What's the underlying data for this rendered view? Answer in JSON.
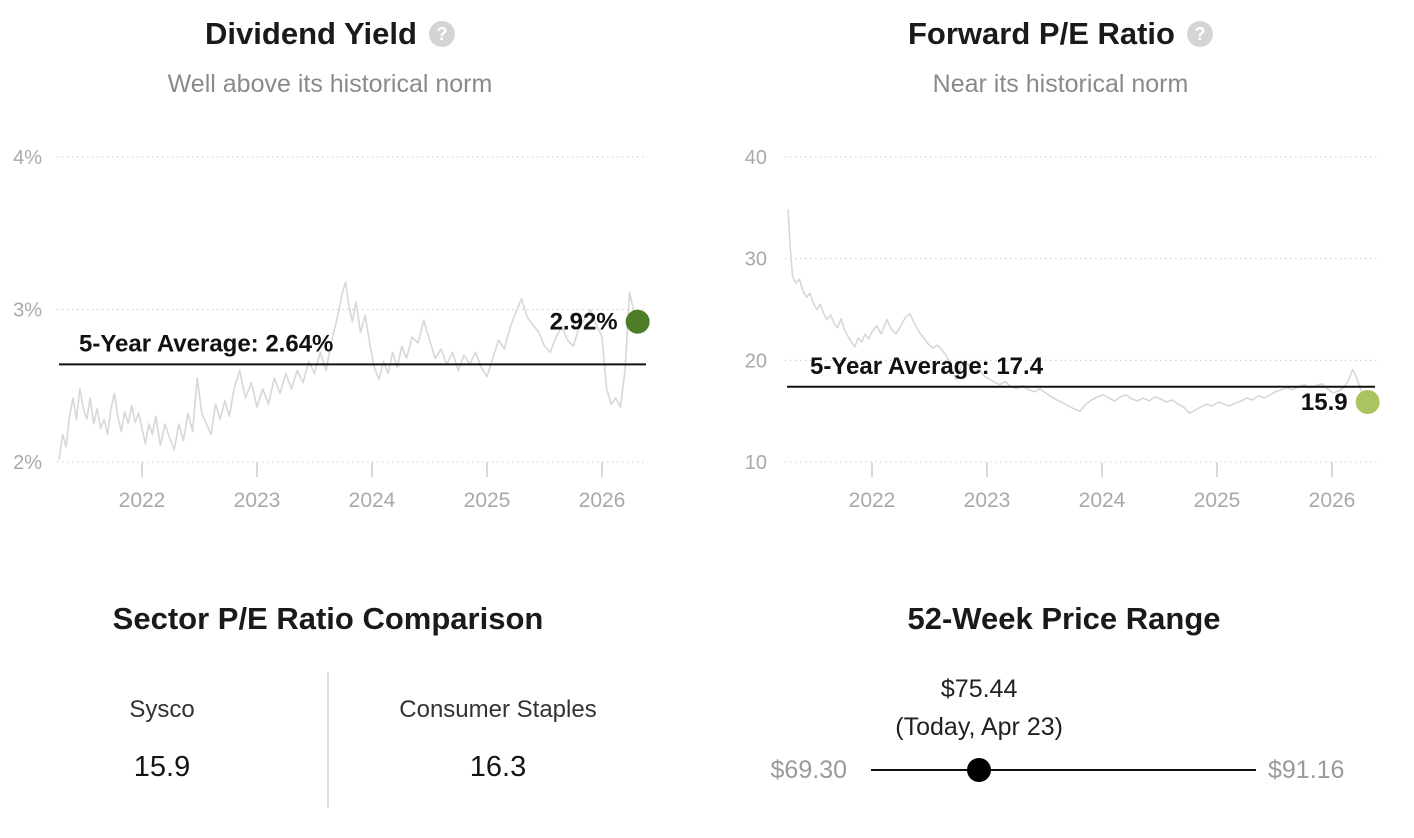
{
  "icons": {
    "help_glyph": "?"
  },
  "colors": {
    "title": "#1a1a1a",
    "subtitle": "#8a8a8a",
    "axis_label": "#a9a9a9",
    "gridline": "#cccccc",
    "series_line": "#d7d7d7",
    "average_line": "#111111",
    "annotation_text": "#111111",
    "dividend_dot": "#4e7d28",
    "pe_dot": "#aac45f",
    "help_icon_bg": "#d4d4d4",
    "range_end_labels": "#9a9a9a",
    "divider": "#dddddd",
    "slider_line": "#111111",
    "slider_dot": "#000000"
  },
  "chart_data": [
    {
      "id": "dividend_yield",
      "type": "line",
      "title": "Dividend Yield",
      "subtitle": "Well above its historical norm",
      "legend": "none",
      "grid": "dotted horizontal",
      "ylim": [
        2,
        4
      ],
      "xlim": [
        2021.25,
        2026.45
      ],
      "y_ticks": [
        {
          "value": 4,
          "label": "4%"
        },
        {
          "value": 3,
          "label": "3%"
        },
        {
          "value": 2,
          "label": "2%"
        }
      ],
      "x_ticks": [
        {
          "value": 2022,
          "label": "2022"
        },
        {
          "value": 2023,
          "label": "2023"
        },
        {
          "value": 2024,
          "label": "2024"
        },
        {
          "value": 2025,
          "label": "2025"
        },
        {
          "value": 2026,
          "label": "2026"
        }
      ],
      "average_line": {
        "label": "5-Year Average: 2.64%",
        "value": 2.64
      },
      "current": {
        "label": "2.92%",
        "value": 2.92
      },
      "series_points": [
        [
          2021.28,
          2.02
        ],
        [
          2021.31,
          2.18
        ],
        [
          2021.34,
          2.1
        ],
        [
          2021.37,
          2.3
        ],
        [
          2021.4,
          2.42
        ],
        [
          2021.43,
          2.28
        ],
        [
          2021.46,
          2.48
        ],
        [
          2021.49,
          2.35
        ],
        [
          2021.52,
          2.28
        ],
        [
          2021.55,
          2.42
        ],
        [
          2021.58,
          2.25
        ],
        [
          2021.61,
          2.35
        ],
        [
          2021.64,
          2.22
        ],
        [
          2021.67,
          2.28
        ],
        [
          2021.7,
          2.18
        ],
        [
          2021.73,
          2.35
        ],
        [
          2021.76,
          2.45
        ],
        [
          2021.79,
          2.3
        ],
        [
          2021.82,
          2.2
        ],
        [
          2021.85,
          2.33
        ],
        [
          2021.88,
          2.25
        ],
        [
          2021.91,
          2.37
        ],
        [
          2021.94,
          2.26
        ],
        [
          2021.97,
          2.32
        ],
        [
          2022.0,
          2.22
        ],
        [
          2022.03,
          2.12
        ],
        [
          2022.06,
          2.25
        ],
        [
          2022.09,
          2.18
        ],
        [
          2022.12,
          2.3
        ],
        [
          2022.16,
          2.11
        ],
        [
          2022.2,
          2.25
        ],
        [
          2022.24,
          2.16
        ],
        [
          2022.28,
          2.08
        ],
        [
          2022.32,
          2.25
        ],
        [
          2022.36,
          2.14
        ],
        [
          2022.4,
          2.32
        ],
        [
          2022.44,
          2.2
        ],
        [
          2022.48,
          2.55
        ],
        [
          2022.52,
          2.32
        ],
        [
          2022.56,
          2.25
        ],
        [
          2022.6,
          2.18
        ],
        [
          2022.64,
          2.38
        ],
        [
          2022.68,
          2.28
        ],
        [
          2022.72,
          2.4
        ],
        [
          2022.76,
          2.3
        ],
        [
          2022.8,
          2.48
        ],
        [
          2022.85,
          2.6
        ],
        [
          2022.9,
          2.42
        ],
        [
          2022.95,
          2.52
        ],
        [
          2023.0,
          2.36
        ],
        [
          2023.05,
          2.48
        ],
        [
          2023.1,
          2.38
        ],
        [
          2023.15,
          2.55
        ],
        [
          2023.2,
          2.45
        ],
        [
          2023.25,
          2.58
        ],
        [
          2023.3,
          2.48
        ],
        [
          2023.35,
          2.6
        ],
        [
          2023.4,
          2.52
        ],
        [
          2023.45,
          2.66
        ],
        [
          2023.5,
          2.58
        ],
        [
          2023.55,
          2.72
        ],
        [
          2023.6,
          2.6
        ],
        [
          2023.65,
          2.8
        ],
        [
          2023.7,
          2.95
        ],
        [
          2023.74,
          3.1
        ],
        [
          2023.77,
          3.18
        ],
        [
          2023.8,
          3.02
        ],
        [
          2023.83,
          2.92
        ],
        [
          2023.86,
          3.05
        ],
        [
          2023.9,
          2.85
        ],
        [
          2023.94,
          2.96
        ],
        [
          2023.98,
          2.78
        ],
        [
          2024.02,
          2.62
        ],
        [
          2024.06,
          2.54
        ],
        [
          2024.1,
          2.66
        ],
        [
          2024.14,
          2.58
        ],
        [
          2024.18,
          2.72
        ],
        [
          2024.22,
          2.62
        ],
        [
          2024.26,
          2.76
        ],
        [
          2024.3,
          2.68
        ],
        [
          2024.35,
          2.82
        ],
        [
          2024.4,
          2.78
        ],
        [
          2024.45,
          2.93
        ],
        [
          2024.5,
          2.8
        ],
        [
          2024.55,
          2.68
        ],
        [
          2024.6,
          2.74
        ],
        [
          2024.65,
          2.64
        ],
        [
          2024.7,
          2.72
        ],
        [
          2024.75,
          2.6
        ],
        [
          2024.8,
          2.7
        ],
        [
          2024.85,
          2.64
        ],
        [
          2024.9,
          2.72
        ],
        [
          2024.95,
          2.62
        ],
        [
          2025.0,
          2.56
        ],
        [
          2025.05,
          2.68
        ],
        [
          2025.1,
          2.8
        ],
        [
          2025.15,
          2.74
        ],
        [
          2025.2,
          2.88
        ],
        [
          2025.25,
          2.98
        ],
        [
          2025.3,
          3.07
        ],
        [
          2025.35,
          2.95
        ],
        [
          2025.4,
          2.9
        ],
        [
          2025.45,
          2.85
        ],
        [
          2025.5,
          2.76
        ],
        [
          2025.55,
          2.72
        ],
        [
          2025.6,
          2.82
        ],
        [
          2025.65,
          2.89
        ],
        [
          2025.7,
          2.8
        ],
        [
          2025.75,
          2.76
        ],
        [
          2025.8,
          2.88
        ],
        [
          2025.85,
          2.94
        ],
        [
          2025.9,
          3.0
        ],
        [
          2025.95,
          2.9
        ],
        [
          2026.0,
          2.82
        ],
        [
          2026.04,
          2.48
        ],
        [
          2026.08,
          2.38
        ],
        [
          2026.12,
          2.42
        ],
        [
          2026.16,
          2.36
        ],
        [
          2026.2,
          2.6
        ],
        [
          2026.24,
          3.11
        ],
        [
          2026.28,
          2.98
        ],
        [
          2026.31,
          2.92
        ]
      ]
    },
    {
      "id": "forward_pe",
      "type": "line",
      "title": "Forward P/E Ratio",
      "subtitle": "Near its historical norm",
      "legend": "none",
      "grid": "dotted horizontal",
      "ylim": [
        10,
        40
      ],
      "xlim": [
        2021.25,
        2026.45
      ],
      "y_ticks": [
        {
          "value": 40,
          "label": "40"
        },
        {
          "value": 30,
          "label": "30"
        },
        {
          "value": 20,
          "label": "20"
        },
        {
          "value": 10,
          "label": "10"
        }
      ],
      "x_ticks": [
        {
          "value": 2022,
          "label": "2022"
        },
        {
          "value": 2023,
          "label": "2023"
        },
        {
          "value": 2024,
          "label": "2024"
        },
        {
          "value": 2025,
          "label": "2025"
        },
        {
          "value": 2026,
          "label": "2026"
        }
      ],
      "average_line": {
        "label": "5-Year Average: 17.4",
        "value": 17.4
      },
      "current": {
        "label": "15.9",
        "value": 15.9
      },
      "series_points": [
        [
          2021.27,
          34.8
        ],
        [
          2021.29,
          31.0
        ],
        [
          2021.31,
          28.2
        ],
        [
          2021.34,
          27.6
        ],
        [
          2021.37,
          28.0
        ],
        [
          2021.4,
          26.8
        ],
        [
          2021.43,
          26.2
        ],
        [
          2021.46,
          26.6
        ],
        [
          2021.49,
          25.6
        ],
        [
          2021.52,
          25.0
        ],
        [
          2021.55,
          25.5
        ],
        [
          2021.58,
          24.6
        ],
        [
          2021.61,
          24.0
        ],
        [
          2021.64,
          24.5
        ],
        [
          2021.67,
          23.6
        ],
        [
          2021.7,
          23.2
        ],
        [
          2021.73,
          24.1
        ],
        [
          2021.76,
          23.0
        ],
        [
          2021.79,
          22.4
        ],
        [
          2021.82,
          21.8
        ],
        [
          2021.85,
          21.3
        ],
        [
          2021.88,
          22.2
        ],
        [
          2021.91,
          21.8
        ],
        [
          2021.94,
          22.6
        ],
        [
          2021.97,
          22.1
        ],
        [
          2022.0,
          22.8
        ],
        [
          2022.04,
          23.4
        ],
        [
          2022.08,
          22.6
        ],
        [
          2022.13,
          24.0
        ],
        [
          2022.17,
          23.0
        ],
        [
          2022.21,
          22.6
        ],
        [
          2022.25,
          23.4
        ],
        [
          2022.29,
          24.2
        ],
        [
          2022.33,
          24.6
        ],
        [
          2022.37,
          23.6
        ],
        [
          2022.41,
          22.8
        ],
        [
          2022.45,
          22.2
        ],
        [
          2022.49,
          21.6
        ],
        [
          2022.53,
          21.2
        ],
        [
          2022.57,
          21.5
        ],
        [
          2022.61,
          21.0
        ],
        [
          2022.65,
          20.4
        ],
        [
          2022.69,
          19.3
        ],
        [
          2022.73,
          18.1
        ],
        [
          2022.77,
          19.2
        ],
        [
          2022.81,
          20.0
        ],
        [
          2022.85,
          19.4
        ],
        [
          2022.89,
          18.8
        ],
        [
          2022.93,
          19.2
        ],
        [
          2022.97,
          18.5
        ],
        [
          2023.01,
          18.2
        ],
        [
          2023.06,
          17.9
        ],
        [
          2023.11,
          17.6
        ],
        [
          2023.16,
          17.9
        ],
        [
          2023.21,
          17.4
        ],
        [
          2023.26,
          17.2
        ],
        [
          2023.31,
          17.5
        ],
        [
          2023.36,
          17.1
        ],
        [
          2023.41,
          16.9
        ],
        [
          2023.46,
          17.2
        ],
        [
          2023.51,
          16.8
        ],
        [
          2023.56,
          16.4
        ],
        [
          2023.61,
          16.1
        ],
        [
          2023.66,
          15.8
        ],
        [
          2023.71,
          15.5
        ],
        [
          2023.76,
          15.2
        ],
        [
          2023.81,
          15.0
        ],
        [
          2023.86,
          15.7
        ],
        [
          2023.91,
          16.1
        ],
        [
          2023.96,
          16.4
        ],
        [
          2024.01,
          16.6
        ],
        [
          2024.06,
          16.3
        ],
        [
          2024.11,
          16.0
        ],
        [
          2024.16,
          16.4
        ],
        [
          2024.21,
          16.6
        ],
        [
          2024.26,
          16.2
        ],
        [
          2024.31,
          16.0
        ],
        [
          2024.36,
          16.3
        ],
        [
          2024.41,
          16.0
        ],
        [
          2024.46,
          16.4
        ],
        [
          2024.51,
          16.2
        ],
        [
          2024.56,
          15.9
        ],
        [
          2024.61,
          16.1
        ],
        [
          2024.66,
          15.7
        ],
        [
          2024.71,
          15.4
        ],
        [
          2024.76,
          14.8
        ],
        [
          2024.81,
          15.1
        ],
        [
          2024.86,
          15.4
        ],
        [
          2024.91,
          15.7
        ],
        [
          2024.96,
          15.5
        ],
        [
          2025.01,
          15.9
        ],
        [
          2025.06,
          15.7
        ],
        [
          2025.11,
          15.5
        ],
        [
          2025.16,
          15.8
        ],
        [
          2025.21,
          16.0
        ],
        [
          2025.26,
          16.3
        ],
        [
          2025.31,
          16.1
        ],
        [
          2025.36,
          16.5
        ],
        [
          2025.41,
          16.3
        ],
        [
          2025.46,
          16.6
        ],
        [
          2025.51,
          16.9
        ],
        [
          2025.56,
          17.1
        ],
        [
          2025.61,
          17.3
        ],
        [
          2025.66,
          17.1
        ],
        [
          2025.71,
          17.4
        ],
        [
          2025.76,
          17.6
        ],
        [
          2025.81,
          17.3
        ],
        [
          2025.86,
          17.5
        ],
        [
          2025.91,
          17.7
        ],
        [
          2025.96,
          17.2
        ],
        [
          2026.01,
          16.8
        ],
        [
          2026.06,
          17.0
        ],
        [
          2026.11,
          17.4
        ],
        [
          2026.15,
          18.2
        ],
        [
          2026.18,
          19.1
        ],
        [
          2026.21,
          18.4
        ],
        [
          2026.24,
          17.4
        ],
        [
          2026.27,
          16.6
        ],
        [
          2026.31,
          15.9
        ]
      ]
    },
    {
      "id": "sector_pe_comparison",
      "type": "table",
      "title": "Sector P/E Ratio Comparison",
      "columns": [
        {
          "label": "Sysco",
          "value": "15.9"
        },
        {
          "label": "Consumer Staples",
          "value": "16.3"
        }
      ]
    },
    {
      "id": "price_range_52w",
      "type": "range",
      "title": "52-Week Price Range",
      "min": {
        "label": "$69.30",
        "value": 69.3
      },
      "max": {
        "label": "$91.16",
        "value": 91.16
      },
      "current": {
        "label": "$75.44",
        "sublabel": "(Today, Apr 23)",
        "value": 75.44
      }
    }
  ]
}
